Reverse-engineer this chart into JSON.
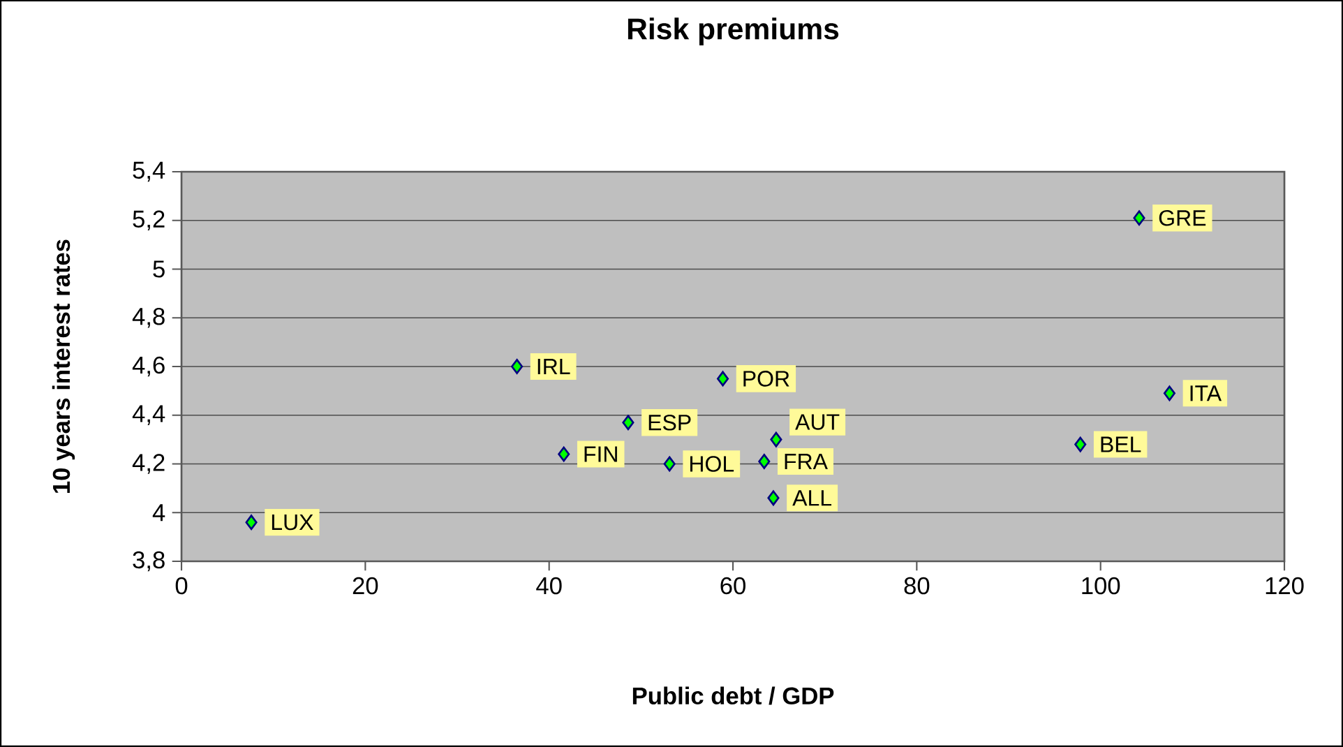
{
  "chart_data": {
    "type": "scatter",
    "title": "Risk premiums",
    "xlabel": "Public debt / GDP",
    "ylabel": "10 years interest rates",
    "series": [
      {
        "color": "#00ff00",
        "x": [
          7.6,
          36.5,
          41.6,
          48.6,
          53.1,
          58.9,
          63.4,
          64.7,
          64.4,
          97.8,
          107.5,
          104.2
        ],
        "values": [
          3.96,
          4.6,
          4.24,
          4.37,
          4.2,
          4.55,
          4.21,
          4.3,
          4.06,
          4.28,
          4.49,
          5.21
        ]
      }
    ],
    "marker": "diamond",
    "grid": "y",
    "xlim": [
      0,
      120
    ],
    "xticks": [
      0,
      20,
      40,
      60,
      80,
      100,
      120
    ],
    "ylim": [
      3.8,
      5.4
    ],
    "yticks": [
      {
        "value": 3.8,
        "label": "3,8"
      },
      {
        "value": 4,
        "label": "4"
      },
      {
        "value": 4.2,
        "label": "4,2"
      },
      {
        "value": 4.4,
        "label": "4,4"
      },
      {
        "value": 4.6,
        "label": "4,6"
      },
      {
        "value": 4.8,
        "label": "4,8"
      },
      {
        "value": 5,
        "label": "5"
      },
      {
        "value": 5.2,
        "label": "5,2"
      },
      {
        "value": 5.4,
        "label": "5,4"
      }
    ],
    "annotations": [
      {
        "text": "LUX",
        "x": 7.6,
        "y": 3.96
      },
      {
        "text": "IRL",
        "x": 36.5,
        "y": 4.6
      },
      {
        "text": "FIN",
        "x": 41.6,
        "y": 4.24
      },
      {
        "text": "ESP",
        "x": 48.6,
        "y": 4.37
      },
      {
        "text": "HOL",
        "x": 53.1,
        "y": 4.2
      },
      {
        "text": "POR",
        "x": 58.9,
        "y": 4.55
      },
      {
        "text": "FRA",
        "x": 63.4,
        "y": 4.21
      },
      {
        "text": "AUT",
        "x": 64.7,
        "y": 4.3
      },
      {
        "text": "ALL",
        "x": 64.4,
        "y": 4.06
      },
      {
        "text": "BEL",
        "x": 97.8,
        "y": 4.28
      },
      {
        "text": "ITA",
        "x": 107.5,
        "y": 4.49
      },
      {
        "text": "GRE",
        "x": 104.2,
        "y": 5.21
      }
    ]
  }
}
